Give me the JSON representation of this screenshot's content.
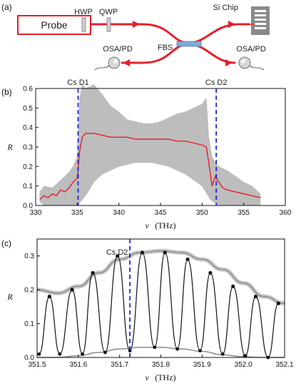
{
  "panel_a": {
    "label": "(a)",
    "probe": "Probe",
    "hwp": "HWP",
    "qwp": "QWP",
    "chip": "Si Chip",
    "fbs": "FBS",
    "osa_left": "OSA/PD",
    "osa_right": "OSA/PD",
    "colors": {
      "beam": "#e4202a",
      "probe_box": "#e4202a",
      "fbs": "#7fa9d6",
      "chip": "#8a8a8a"
    }
  },
  "chart_data": [
    {
      "type": "line",
      "panel_label": "(b)",
      "xlabel_var": "ν",
      "xlabel_unit": "(THz)",
      "ylabel": "R",
      "xlim": [
        330,
        360
      ],
      "ylim": [
        0,
        0.6
      ],
      "xticks": [
        "330",
        "335",
        "340",
        "345",
        "350",
        "355",
        "360"
      ],
      "yticks": [
        "0.0",
        "0.1",
        "0.2",
        "0.3",
        "0.4",
        "0.5",
        "0.6"
      ],
      "grid": false,
      "markers": [
        {
          "label": "Cs D1",
          "x": 335.1
        },
        {
          "label": "Cs D2",
          "x": 351.7
        }
      ],
      "envelope_upper": {
        "x": [
          330.5,
          331,
          332,
          333,
          334,
          334.5,
          335,
          335.3,
          335.6,
          336,
          337,
          338,
          339,
          340,
          341,
          342,
          343,
          344,
          345,
          346,
          347,
          348,
          349,
          350,
          350.5,
          350.8,
          351.2,
          351.6,
          352,
          352.5,
          353,
          354,
          355,
          356,
          357
        ],
        "y": [
          0.07,
          0.1,
          0.09,
          0.13,
          0.17,
          0.2,
          0.25,
          0.55,
          0.62,
          0.6,
          0.62,
          0.57,
          0.51,
          0.48,
          0.44,
          0.43,
          0.42,
          0.42,
          0.43,
          0.45,
          0.47,
          0.48,
          0.5,
          0.52,
          0.55,
          0.35,
          0.25,
          0.22,
          0.2,
          0.19,
          0.18,
          0.15,
          0.12,
          0.1,
          0.06
        ]
      },
      "envelope_lower": {
        "x": [
          330.5,
          331,
          332,
          333,
          334,
          335,
          336,
          337,
          338,
          339,
          340,
          341,
          342,
          343,
          344,
          345,
          346,
          347,
          348,
          349,
          350,
          351,
          352,
          353,
          354,
          355,
          356,
          357
        ],
        "y": [
          0.02,
          0.0,
          0.0,
          0.0,
          0.0,
          0.0,
          0.05,
          0.12,
          0.16,
          0.18,
          0.2,
          0.21,
          0.22,
          0.22,
          0.22,
          0.21,
          0.2,
          0.18,
          0.16,
          0.13,
          0.1,
          0.03,
          0.0,
          0.0,
          0.0,
          0.0,
          0.0,
          0.0
        ]
      },
      "series": [
        {
          "color": "#e4202a",
          "x": [
            330.5,
            331,
            331.5,
            332,
            332.5,
            333,
            333.5,
            334,
            334.5,
            335,
            335.3,
            335.6,
            336,
            337,
            338,
            339,
            340,
            341,
            342,
            343,
            344,
            345,
            346,
            347,
            348,
            349,
            350,
            350.5,
            350.8,
            351.2,
            351.6,
            352,
            352.5,
            353,
            354,
            355,
            356,
            357
          ],
          "y": [
            0.03,
            0.05,
            0.04,
            0.06,
            0.05,
            0.08,
            0.07,
            0.09,
            0.12,
            0.14,
            0.28,
            0.35,
            0.37,
            0.37,
            0.36,
            0.35,
            0.35,
            0.35,
            0.34,
            0.34,
            0.34,
            0.34,
            0.34,
            0.33,
            0.33,
            0.32,
            0.31,
            0.3,
            0.22,
            0.1,
            0.15,
            0.12,
            0.09,
            0.08,
            0.07,
            0.06,
            0.05,
            0.04
          ]
        }
      ]
    },
    {
      "type": "line",
      "panel_label": "(c)",
      "xlabel_var": "ν",
      "xlabel_unit": "(THz)",
      "ylabel": "R",
      "xlim": [
        351.5,
        352.1
      ],
      "ylim": [
        0,
        0.35
      ],
      "xticks": [
        "351.5",
        "351.6",
        "351.7",
        "351.8",
        "351.9",
        "352.0",
        "352.1"
      ],
      "yticks": [
        "0.0",
        "0.1",
        "0.2",
        "0.3"
      ],
      "grid": false,
      "markers": [
        {
          "label": "Cs D2",
          "x": 351.725
        }
      ],
      "upper_envelope": {
        "color": "#8a8a8a",
        "x": [
          351.5,
          351.55,
          351.6,
          351.65,
          351.7,
          351.75,
          351.8,
          351.85,
          351.9,
          351.95,
          352.0,
          352.05,
          352.1
        ],
        "y": [
          0.2,
          0.19,
          0.21,
          0.25,
          0.29,
          0.31,
          0.315,
          0.31,
          0.29,
          0.26,
          0.22,
          0.18,
          0.16
        ]
      },
      "lower_envelope": {
        "color": "#8a8a8a",
        "x": [
          351.5,
          351.55,
          351.6,
          351.65,
          351.7,
          351.75,
          351.8,
          351.85,
          351.9,
          351.95,
          352.0,
          352.05,
          352.1
        ],
        "y": [
          0.0,
          0.0,
          0.005,
          0.015,
          0.025,
          0.03,
          0.03,
          0.025,
          0.018,
          0.008,
          0.002,
          0.0,
          0.0
        ]
      },
      "fringe_series": {
        "color": "#111111",
        "maxima": [
          {
            "x": 351.53,
            "y": 0.18
          },
          {
            "x": 351.585,
            "y": 0.2
          },
          {
            "x": 351.635,
            "y": 0.25
          },
          {
            "x": 351.695,
            "y": 0.3
          },
          {
            "x": 351.755,
            "y": 0.31
          },
          {
            "x": 351.81,
            "y": 0.31
          },
          {
            "x": 351.865,
            "y": 0.29
          },
          {
            "x": 351.92,
            "y": 0.25
          },
          {
            "x": 351.975,
            "y": 0.21
          },
          {
            "x": 352.03,
            "y": 0.18
          },
          {
            "x": 352.085,
            "y": 0.16
          }
        ],
        "minima": [
          {
            "x": 351.505,
            "y": 0.01
          },
          {
            "x": 351.555,
            "y": 0.01
          },
          {
            "x": 351.61,
            "y": 0.01
          },
          {
            "x": 351.665,
            "y": 0.015
          },
          {
            "x": 351.725,
            "y": 0.02
          },
          {
            "x": 351.785,
            "y": 0.03
          },
          {
            "x": 351.84,
            "y": 0.025
          },
          {
            "x": 351.895,
            "y": 0.02
          },
          {
            "x": 351.95,
            "y": 0.01
          },
          {
            "x": 352.005,
            "y": 0.005
          },
          {
            "x": 352.06,
            "y": 0.0
          }
        ]
      }
    }
  ]
}
